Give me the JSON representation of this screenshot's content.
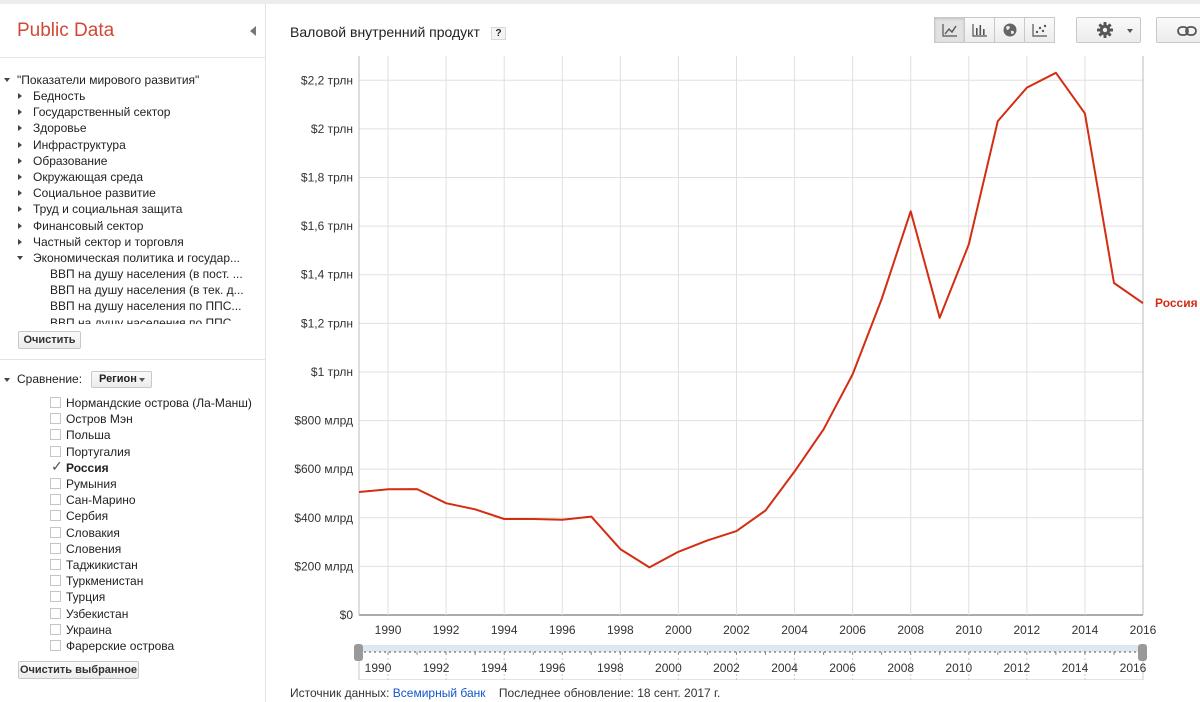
{
  "brand": "Public Data",
  "tree": {
    "root": "\"Показатели мирового развития\"",
    "topics": [
      "Бедность",
      "Государственный сектор",
      "Здоровье",
      "Инфраструктура",
      "Образование",
      "Окружающая среда",
      "Социальное развитие",
      "Труд и социальная защита",
      "Финансовый сектор",
      "Частный сектор и торговля",
      "Экономическая политика и государ..."
    ],
    "subitems": [
      "ВВП на душу населения (в пост. ...",
      "ВВП на душу населения (в тек. д...",
      "ВВП на душу населения по ППС...",
      "ВВП на душу населения по ППС..."
    ],
    "clear_label": "Очистить"
  },
  "comparison": {
    "label": "Сравнение:",
    "dropdown_value": "Регион",
    "countries": [
      {
        "name": "Нормандские острова (Ла-Манш)",
        "checked": false
      },
      {
        "name": "Остров Мэн",
        "checked": false
      },
      {
        "name": "Польша",
        "checked": false
      },
      {
        "name": "Португалия",
        "checked": false
      },
      {
        "name": "Россия",
        "checked": true
      },
      {
        "name": "Румыния",
        "checked": false
      },
      {
        "name": "Сан-Марино",
        "checked": false
      },
      {
        "name": "Сербия",
        "checked": false
      },
      {
        "name": "Словакия",
        "checked": false
      },
      {
        "name": "Словения",
        "checked": false
      },
      {
        "name": "Таджикистан",
        "checked": false
      },
      {
        "name": "Туркменистан",
        "checked": false
      },
      {
        "name": "Турция",
        "checked": false
      },
      {
        "name": "Узбекистан",
        "checked": false
      },
      {
        "name": "Украина",
        "checked": false
      },
      {
        "name": "Фарерские острова",
        "checked": false
      }
    ],
    "clear_selected_label": "Очистить выбранное"
  },
  "chart": {
    "title": "Валовой внутренний продукт",
    "help_label": "?",
    "view_icons": [
      "line-chart-icon",
      "bar-chart-icon",
      "map-globe-icon",
      "scatter-chart-icon"
    ],
    "active_view": "line-chart-icon"
  },
  "colors": {
    "brand": "#d14836",
    "series": "#d32d12",
    "grid": "#e0e0e0",
    "link": "#1155cc"
  },
  "chart_data": {
    "type": "line",
    "title": "Валовой внутренний продукт",
    "xlabel": "",
    "ylabel": "",
    "x": [
      1989,
      1990,
      1991,
      1992,
      1993,
      1994,
      1995,
      1996,
      1997,
      1998,
      1999,
      2000,
      2001,
      2002,
      2003,
      2004,
      2005,
      2006,
      2007,
      2008,
      2009,
      2010,
      2011,
      2012,
      2013,
      2014,
      2015,
      2016
    ],
    "series": [
      {
        "name": "Россия",
        "values": [
          506,
          517,
          518,
          460,
          435,
          395,
          395,
          392,
          405,
          271,
          196,
          260,
          307,
          345,
          430,
          591,
          764,
          990,
          1300,
          1661,
          1223,
          1525,
          2032,
          2170,
          2231,
          2064,
          1366,
          1283
        ]
      }
    ],
    "xlim": [
      1989,
      2016
    ],
    "ylim": [
      0,
      2300
    ],
    "xticks": [
      1990,
      1992,
      1994,
      1996,
      1998,
      2000,
      2002,
      2004,
      2006,
      2008,
      2010,
      2012,
      2014,
      2016
    ],
    "xtick_labels": [
      "1990",
      "1992",
      "1994",
      "1996",
      "1998",
      "2000",
      "2002",
      "2004",
      "2006",
      "2008",
      "2010",
      "2012",
      "2014",
      "2016"
    ],
    "yticks": [
      0,
      200,
      400,
      600,
      800,
      1000,
      1200,
      1400,
      1600,
      1800,
      2000,
      2200
    ],
    "ytick_labels": [
      "$0",
      "$200 млрд",
      "$400 млрд",
      "$600 млрд",
      "$800 млрд",
      "$1 трлн",
      "$1,2 трлн",
      "$1,4 трлн",
      "$1,6 трлн",
      "$1,8 трлн",
      "$2 трлн",
      "$2,2 трлн"
    ],
    "grid": true,
    "series_label": "Россия",
    "range_selector": {
      "start": 1989,
      "end": 2016,
      "labels": [
        "1990",
        "1992",
        "1994",
        "1996",
        "1998",
        "2000",
        "2002",
        "2004",
        "2006",
        "2008",
        "2010",
        "2012",
        "2014",
        "2016"
      ]
    }
  },
  "footer": {
    "source_label": "Источник данных:",
    "source_link": "Всемирный банк",
    "updated": "Последнее обновление: 18 сент. 2017 г."
  }
}
